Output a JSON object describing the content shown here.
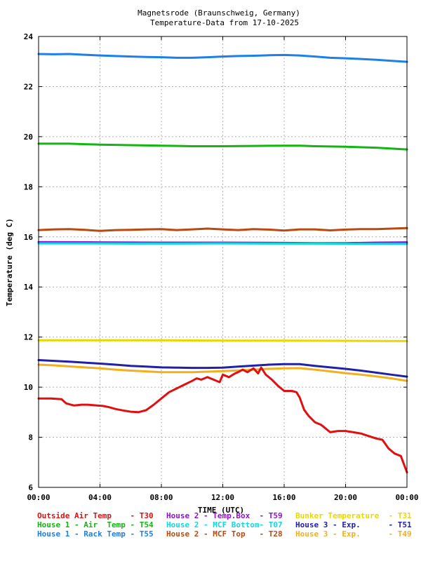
{
  "chart_data": {
    "type": "line",
    "title": "Magnetsrode (Braunschweig, Germany)",
    "subtitle": "Temperature-Data from 17-10-2025",
    "xlabel": "TIME (UTC)",
    "ylabel": "Temperature (deg C)",
    "xlim": [
      0,
      24
    ],
    "ylim": [
      6,
      24
    ],
    "x_ticks": [
      {
        "value": 0,
        "label": "00:00"
      },
      {
        "value": 4,
        "label": "04:00"
      },
      {
        "value": 8,
        "label": "08:00"
      },
      {
        "value": 12,
        "label": "12:00"
      },
      {
        "value": 16,
        "label": "16:00"
      },
      {
        "value": 20,
        "label": "20:00"
      },
      {
        "value": 24,
        "label": "00:00"
      }
    ],
    "y_ticks": [
      6,
      8,
      10,
      12,
      14,
      16,
      18,
      20,
      22,
      24
    ],
    "grid": true,
    "legend_position": "bottom",
    "series": [
      {
        "name": "House 1 - Rack Temp",
        "code": "T55",
        "color": "#1e7fe8",
        "x": [
          0,
          1,
          2,
          3,
          4,
          5,
          6,
          7,
          8,
          9,
          10,
          11,
          12,
          13,
          14,
          15,
          16,
          17,
          18,
          19,
          20,
          21,
          22,
          23,
          24
        ],
        "y": [
          23.3,
          23.29,
          23.3,
          23.27,
          23.24,
          23.22,
          23.2,
          23.18,
          23.17,
          23.15,
          23.15,
          23.17,
          23.2,
          23.22,
          23.23,
          23.25,
          23.26,
          23.24,
          23.2,
          23.15,
          23.13,
          23.1,
          23.07,
          23.03,
          22.99
        ]
      },
      {
        "name": "House 1 - Air  Temp",
        "code": "T54",
        "color": "#12b512",
        "x": [
          0,
          2,
          4,
          6,
          8,
          10,
          12,
          14,
          16,
          17,
          18,
          20,
          22,
          24
        ],
        "y": [
          19.72,
          19.72,
          19.68,
          19.66,
          19.64,
          19.62,
          19.62,
          19.63,
          19.64,
          19.64,
          19.62,
          19.6,
          19.56,
          19.49
        ]
      },
      {
        "name": "House 2 - MCF Top",
        "code": "T28",
        "color": "#b84a12",
        "x": [
          0,
          1,
          2,
          3,
          4,
          5,
          6,
          7,
          8,
          9,
          10,
          11,
          12,
          13,
          14,
          15,
          16,
          17,
          18,
          19,
          20,
          21,
          22,
          23,
          24
        ],
        "y": [
          16.27,
          16.3,
          16.31,
          16.28,
          16.24,
          16.27,
          16.28,
          16.3,
          16.31,
          16.27,
          16.3,
          16.33,
          16.3,
          16.27,
          16.31,
          16.29,
          16.25,
          16.3,
          16.3,
          16.26,
          16.29,
          16.31,
          16.31,
          16.33,
          16.35
        ]
      },
      {
        "name": "House 2 - Temp.Box",
        "code": "T59",
        "color": "#9010d0",
        "x": [
          0,
          4,
          8,
          12,
          16,
          18,
          20,
          22,
          24
        ],
        "y": [
          15.79,
          15.78,
          15.77,
          15.77,
          15.76,
          15.75,
          15.75,
          15.77,
          15.78
        ]
      },
      {
        "name": "House 2 - MCF Bottom",
        "code": "T07",
        "color": "#10d8e0",
        "x": [
          0,
          3,
          6,
          9,
          12,
          15,
          18,
          21,
          24
        ],
        "y": [
          15.74,
          15.74,
          15.73,
          15.73,
          15.74,
          15.73,
          15.73,
          15.72,
          15.72
        ]
      },
      {
        "name": "Bunker Temperature",
        "code": "T31",
        "color": "#e8d800",
        "x": [
          0,
          4,
          8,
          12,
          16,
          20,
          24
        ],
        "y": [
          11.87,
          11.87,
          11.87,
          11.86,
          11.86,
          11.85,
          11.84
        ]
      },
      {
        "name": "House 3 - Exp.",
        "code": "T51",
        "color": "#2020a8",
        "x": [
          0,
          1,
          2,
          3,
          4,
          5,
          6,
          7,
          8,
          9,
          10,
          11,
          12,
          13,
          14,
          15,
          16,
          17,
          18,
          19,
          20,
          21,
          22,
          23,
          24
        ],
        "y": [
          11.08,
          11.05,
          11.02,
          10.98,
          10.94,
          10.9,
          10.85,
          10.82,
          10.79,
          10.78,
          10.77,
          10.77,
          10.78,
          10.82,
          10.86,
          10.9,
          10.92,
          10.92,
          10.85,
          10.79,
          10.73,
          10.66,
          10.58,
          10.5,
          10.42
        ]
      },
      {
        "name": "House 3 - Exp.",
        "code": "T49",
        "color": "#f0b020",
        "x": [
          0,
          1,
          2,
          3,
          4,
          5,
          6,
          7,
          8,
          9,
          10,
          11,
          12,
          13,
          14,
          15,
          16,
          17,
          18,
          19,
          20,
          21,
          22,
          23,
          24
        ],
        "y": [
          10.9,
          10.87,
          10.83,
          10.79,
          10.75,
          10.7,
          10.66,
          10.63,
          10.6,
          10.6,
          10.6,
          10.62,
          10.64,
          10.67,
          10.7,
          10.73,
          10.75,
          10.76,
          10.7,
          10.63,
          10.56,
          10.5,
          10.43,
          10.35,
          10.25
        ]
      },
      {
        "name": "Outside Air Temp",
        "code": "T30",
        "color": "#e01010",
        "x": [
          0,
          0.8,
          1.5,
          1.8,
          2.3,
          2.8,
          3.2,
          3.8,
          4.2,
          4.6,
          5.0,
          5.5,
          6.0,
          6.5,
          7.0,
          7.5,
          8.0,
          8.5,
          9.0,
          9.5,
          10.0,
          10.3,
          10.6,
          11.0,
          11.4,
          11.8,
          12.0,
          12.4,
          12.8,
          13.0,
          13.3,
          13.6,
          14.0,
          14.3,
          14.5,
          14.8,
          15.2,
          15.6,
          16.0,
          16.5,
          16.8,
          17.0,
          17.3,
          17.6,
          18.0,
          18.4,
          18.8,
          19.0,
          19.5,
          20.0,
          20.5,
          21.0,
          21.5,
          22.0,
          22.4,
          22.8,
          23.2,
          23.6,
          24.0
        ],
        "y": [
          9.55,
          9.55,
          9.52,
          9.35,
          9.27,
          9.3,
          9.3,
          9.27,
          9.25,
          9.2,
          9.13,
          9.07,
          9.02,
          9.0,
          9.08,
          9.3,
          9.55,
          9.8,
          9.95,
          10.1,
          10.25,
          10.35,
          10.3,
          10.4,
          10.3,
          10.2,
          10.5,
          10.4,
          10.55,
          10.6,
          10.7,
          10.6,
          10.75,
          10.55,
          10.78,
          10.5,
          10.3,
          10.05,
          9.85,
          9.85,
          9.8,
          9.6,
          9.1,
          8.85,
          8.6,
          8.5,
          8.3,
          8.2,
          8.25,
          8.25,
          8.2,
          8.15,
          8.05,
          7.95,
          7.9,
          7.55,
          7.35,
          7.25,
          6.6
        ]
      }
    ]
  },
  "legend_rows": [
    [
      {
        "text": "Outside Air Temp    - T30",
        "color": "#e01010"
      },
      {
        "text": "House 2 - Temp.Box  - T59",
        "color": "#9010d0"
      },
      {
        "text": "Bunker Temperature  - T31",
        "color": "#e8d800"
      }
    ],
    [
      {
        "text": "House 1 - Air  Temp - T54",
        "color": "#12b512"
      },
      {
        "text": "House 2 - MCF Bottom- T07",
        "color": "#10d8e0"
      },
      {
        "text": "House 3 - Exp.      - T51",
        "color": "#2020a8"
      }
    ],
    [
      {
        "text": "House 1 - Rack Temp - T55",
        "color": "#1e7fe8"
      },
      {
        "text": "House 2 - MCF Top   - T28",
        "color": "#b84a12"
      },
      {
        "text": "House 3 - Exp.      - T49",
        "color": "#f0b020"
      }
    ]
  ]
}
